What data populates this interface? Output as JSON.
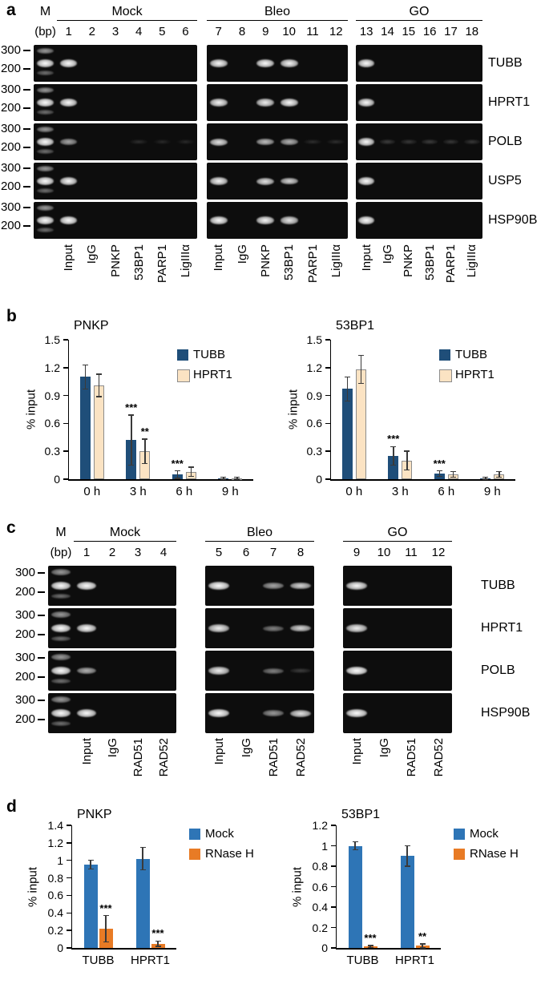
{
  "figure": {
    "panels": {
      "a": "a",
      "b": "b",
      "c": "c",
      "d": "d"
    }
  },
  "panel_a": {
    "header": {
      "m": "M",
      "bp": "(bp)"
    },
    "groups": [
      {
        "name": "Mock",
        "lane_numbers": [
          "1",
          "2",
          "3",
          "4",
          "5",
          "6"
        ]
      },
      {
        "name": "Bleo",
        "lane_numbers": [
          "7",
          "8",
          "9",
          "10",
          "11",
          "12"
        ]
      },
      {
        "name": "GO",
        "lane_numbers": [
          "13",
          "14",
          "15",
          "16",
          "17",
          "18"
        ]
      }
    ],
    "antibody_labels": [
      "Input",
      "IgG",
      "PNKP",
      "53BP1",
      "PARP1",
      "LigIIIα"
    ],
    "marker_sizes": [
      "300",
      "200"
    ],
    "rows": [
      {
        "gene": "TUBB",
        "bands": [
          [
            0.95,
            0,
            0,
            0,
            0,
            0
          ],
          [
            0.9,
            0,
            0.92,
            0.88,
            0,
            0
          ],
          [
            0.92,
            0,
            0,
            0,
            0,
            0
          ]
        ]
      },
      {
        "gene": "HPRT1",
        "bands": [
          [
            0.92,
            0,
            0,
            0,
            0,
            0
          ],
          [
            0.88,
            0,
            0.85,
            0.9,
            0,
            0
          ],
          [
            0.9,
            0,
            0,
            0,
            0,
            0
          ]
        ]
      },
      {
        "gene": "POLB",
        "bands": [
          [
            0.55,
            0,
            0,
            0.06,
            0.04,
            0.04
          ],
          [
            0.8,
            0,
            0.65,
            0.6,
            0.06,
            0.06
          ],
          [
            0.9,
            0.12,
            0.1,
            0.12,
            0.1,
            0.1
          ]
        ]
      },
      {
        "gene": "USP5",
        "bands": [
          [
            0.9,
            0,
            0,
            0,
            0,
            0
          ],
          [
            0.88,
            0,
            0.8,
            0.75,
            0,
            0
          ],
          [
            0.93,
            0,
            0,
            0,
            0,
            0
          ]
        ]
      },
      {
        "gene": "HSP90B",
        "bands": [
          [
            0.95,
            0,
            0,
            0,
            0,
            0
          ],
          [
            0.92,
            0,
            0.88,
            0.82,
            0,
            0
          ],
          [
            0.95,
            0,
            0,
            0,
            0,
            0
          ]
        ]
      }
    ]
  },
  "panel_c": {
    "header": {
      "m": "M",
      "bp": "(bp)"
    },
    "groups": [
      {
        "name": "Mock",
        "lane_numbers": [
          "1",
          "2",
          "3",
          "4"
        ]
      },
      {
        "name": "Bleo",
        "lane_numbers": [
          "5",
          "6",
          "7",
          "8"
        ]
      },
      {
        "name": "GO",
        "lane_numbers": [
          "9",
          "10",
          "11",
          "12"
        ]
      }
    ],
    "antibody_labels": [
      "Input",
      "IgG",
      "RAD51",
      "RAD52"
    ],
    "marker_sizes": [
      "300",
      "200"
    ],
    "rows": [
      {
        "gene": "TUBB",
        "bands": [
          [
            0.95,
            0,
            0,
            0
          ],
          [
            0.95,
            0,
            0.55,
            0.75
          ],
          [
            0.9,
            0,
            0,
            0
          ]
        ]
      },
      {
        "gene": "HPRT1",
        "bands": [
          [
            0.9,
            0,
            0,
            0
          ],
          [
            0.85,
            0,
            0.4,
            0.75
          ],
          [
            0.85,
            0,
            0,
            0
          ]
        ]
      },
      {
        "gene": "POLB",
        "bands": [
          [
            0.6,
            0,
            0,
            0
          ],
          [
            0.85,
            0,
            0.4,
            0.12
          ],
          [
            0.98,
            0,
            0,
            0
          ]
        ]
      },
      {
        "gene": "HSP90B",
        "bands": [
          [
            0.92,
            0,
            0,
            0
          ],
          [
            0.95,
            0,
            0.5,
            0.8
          ],
          [
            0.95,
            0,
            0,
            0
          ]
        ]
      }
    ]
  },
  "chart_data": [
    {
      "type": "bar",
      "panel": "b",
      "title": "PNKP",
      "ylabel": "% input",
      "ylim": [
        0,
        1.5
      ],
      "yticks": [
        0,
        0.3,
        0.6,
        0.9,
        1.2,
        1.5
      ],
      "ytick_labels": [
        "0",
        "0.3",
        "0.6",
        "0.9",
        "1.2",
        "1.5"
      ],
      "categories": [
        "0 h",
        "3 h",
        "6 h",
        "9 h"
      ],
      "legend_position": "inside-top-right",
      "grid": false,
      "series": [
        {
          "name": "TUBB",
          "color": "#1f4e79",
          "values": [
            1.1,
            0.42,
            0.05,
            0.012
          ],
          "errors": [
            0.13,
            0.27,
            0.04,
            0.01
          ],
          "sig": [
            "",
            "***",
            "***",
            ""
          ]
        },
        {
          "name": "HPRT1",
          "color": "#fbe3c3",
          "border": "#8c8c8c",
          "values": [
            1.01,
            0.3,
            0.08,
            0.012
          ],
          "errors": [
            0.12,
            0.13,
            0.05,
            0.01
          ],
          "sig": [
            "",
            "**",
            "",
            ""
          ]
        }
      ]
    },
    {
      "type": "bar",
      "panel": "b",
      "title": "53BP1",
      "ylabel": "% input",
      "ylim": [
        0,
        1.5
      ],
      "yticks": [
        0,
        0.3,
        0.6,
        0.9,
        1.2,
        1.5
      ],
      "ytick_labels": [
        "0",
        "0.3",
        "0.6",
        "0.9",
        "1.2",
        "1.5"
      ],
      "categories": [
        "0 h",
        "3 h",
        "6 h",
        "9 h"
      ],
      "legend_position": "inside-top-right",
      "grid": false,
      "series": [
        {
          "name": "TUBB",
          "color": "#1f4e79",
          "values": [
            0.97,
            0.25,
            0.06,
            0.012
          ],
          "errors": [
            0.13,
            0.1,
            0.03,
            0.01
          ],
          "sig": [
            "",
            "***",
            "***",
            ""
          ]
        },
        {
          "name": "HPRT1",
          "color": "#fbe3c3",
          "border": "#8c8c8c",
          "values": [
            1.18,
            0.2,
            0.05,
            0.05
          ],
          "errors": [
            0.15,
            0.1,
            0.03,
            0.03
          ],
          "sig": [
            "",
            "",
            "",
            ""
          ]
        }
      ]
    },
    {
      "type": "bar",
      "panel": "d",
      "title": "PNKP",
      "ylabel": "% input",
      "ylim": [
        0,
        1.4
      ],
      "yticks": [
        0,
        0.2,
        0.4,
        0.6,
        0.8,
        1,
        1.2,
        1.4
      ],
      "ytick_labels": [
        "0",
        "0.2",
        "0.4",
        "0.6",
        "0.8",
        "1",
        "1.2",
        "1.4"
      ],
      "categories": [
        "TUBB",
        "HPRT1"
      ],
      "legend_position": "right",
      "grid": false,
      "series": [
        {
          "name": "Mock",
          "color": "#2e75b6",
          "values": [
            0.95,
            1.02
          ],
          "errors": [
            0.05,
            0.13
          ],
          "sig": [
            "",
            ""
          ]
        },
        {
          "name": "RNase H",
          "color": "#e87b25",
          "values": [
            0.22,
            0.05
          ],
          "errors": [
            0.15,
            0.03
          ],
          "sig": [
            "***",
            "***"
          ]
        }
      ]
    },
    {
      "type": "bar",
      "panel": "d",
      "title": "53BP1",
      "ylabel": "% input",
      "ylim": [
        0,
        1.2
      ],
      "yticks": [
        0,
        0.2,
        0.4,
        0.6,
        0.8,
        1,
        1.2
      ],
      "ytick_labels": [
        "0",
        "0.2",
        "0.4",
        "0.6",
        "0.8",
        "1",
        "1.2"
      ],
      "categories": [
        "TUBB",
        "HPRT1"
      ],
      "legend_position": "right",
      "grid": false,
      "series": [
        {
          "name": "Mock",
          "color": "#2e75b6",
          "values": [
            1.0,
            0.9
          ],
          "errors": [
            0.04,
            0.1
          ],
          "sig": [
            "",
            ""
          ]
        },
        {
          "name": "RNase H",
          "color": "#e87b25",
          "values": [
            0.012,
            0.02
          ],
          "errors": [
            0.01,
            0.02
          ],
          "sig": [
            "***",
            "**"
          ]
        }
      ]
    }
  ]
}
